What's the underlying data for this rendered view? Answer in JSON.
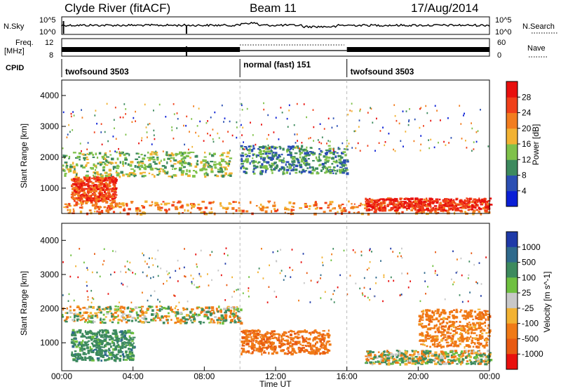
{
  "header": {
    "station": "Clyde River (fitACF)",
    "beam": "Beam 11",
    "date": "17/Aug/2014"
  },
  "summary": {
    "nsky_label": "N.Sky",
    "nsky_ticks": [
      "10^5",
      "10^0"
    ],
    "nsearch_label": "N.Search",
    "nsearch_ticks": [
      "10^5",
      "10^0"
    ],
    "freq_label": [
      "Freq.",
      "[MHz]"
    ],
    "freq_ticks": [
      "12",
      "8"
    ],
    "nave_label": "Nave",
    "nave_ticks": [
      "60",
      "0"
    ],
    "cpid_label": "CPID",
    "cpid_segments": [
      {
        "label": "twofsound 3503",
        "start": 0,
        "end": 10
      },
      {
        "label": "normal (fast) 151",
        "start": 10,
        "end": 16
      },
      {
        "label": "twofsound 3503",
        "start": 16,
        "end": 24
      }
    ]
  },
  "axes": {
    "xlabel": "Time UT",
    "x_ticks": [
      "00:00",
      "04:00",
      "08:00",
      "12:00",
      "16:00",
      "20:00",
      "00:00"
    ],
    "ylabel": "Slant Range [km]",
    "y_ticks": [
      "1000",
      "2000",
      "3000",
      "4000"
    ]
  },
  "colorbars": {
    "power": {
      "label": "Power [dB]",
      "ticks": [
        "4",
        "8",
        "12",
        "16",
        "20",
        "24",
        "28"
      ],
      "colors": [
        "#0a1fd6",
        "#2b4fb3",
        "#3d8a5e",
        "#7fc14a",
        "#f2b233",
        "#f27d1f",
        "#f0401a",
        "#e8100e"
      ]
    },
    "velocity": {
      "label": "Velocity [m s^-1]",
      "ticks": [
        "1000",
        "500",
        "100",
        "25",
        "-25",
        "-100",
        "-500",
        "-1000"
      ],
      "colors": [
        "#1f3aa8",
        "#2f6a8c",
        "#3d8a5e",
        "#6fc040",
        "#c8c8c8",
        "#f2b233",
        "#f07a16",
        "#e85a12",
        "#e8100e"
      ]
    }
  },
  "chart_data": [
    {
      "type": "heatmap",
      "title": "Power",
      "x_range_hours": [
        0,
        24
      ],
      "y_range_km": [
        180,
        4500
      ],
      "bands": [
        {
          "t": [
            0,
            24
          ],
          "r": [
            200,
            600
          ],
          "value_dB": 22
        },
        {
          "t": [
            0.5,
            3
          ],
          "r": [
            600,
            1400
          ],
          "value_dB": 26
        },
        {
          "t": [
            0,
            9.5
          ],
          "r": [
            1400,
            2200
          ],
          "value_dB": 14
        },
        {
          "t": [
            17,
            24
          ],
          "r": [
            300,
            700
          ],
          "value_dB": 28
        },
        {
          "t": [
            10,
            16
          ],
          "r": [
            1500,
            2400
          ],
          "value_dB": 10
        }
      ]
    },
    {
      "type": "heatmap",
      "title": "Velocity",
      "x_range_hours": [
        0,
        24
      ],
      "y_range_km": [
        180,
        4500
      ],
      "bands": [
        {
          "t": [
            0.5,
            4
          ],
          "r": [
            500,
            1400
          ],
          "value_ms": 300
        },
        {
          "t": [
            0,
            10
          ],
          "r": [
            1600,
            2100
          ],
          "value_ms": 0
        },
        {
          "t": [
            10,
            15
          ],
          "r": [
            700,
            1400
          ],
          "value_ms": -400
        },
        {
          "t": [
            17,
            24
          ],
          "r": [
            400,
            800
          ],
          "value_ms": 0
        },
        {
          "t": [
            20,
            24
          ],
          "r": [
            900,
            2000
          ],
          "value_ms": -300
        }
      ]
    }
  ]
}
